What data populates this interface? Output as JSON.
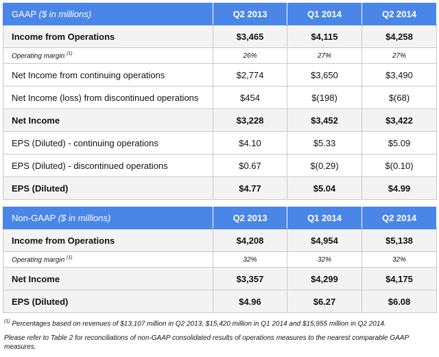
{
  "gaap": {
    "header": {
      "label": "GAAP",
      "unit": "($ in millions)",
      "periods": [
        "Q2 2013",
        "Q1 2014",
        "Q2 2014"
      ]
    },
    "rows": [
      {
        "label": "Income from Operations",
        "values": [
          "$3,465",
          "$4,115",
          "$4,258"
        ]
      },
      {
        "label": "Operating margin",
        "footnote": "(1)",
        "values": [
          "26%",
          "27%",
          "27%"
        ]
      },
      {
        "label": "Net Income from continuing operations",
        "values": [
          "$2,774",
          "$3,650",
          "$3,490"
        ]
      },
      {
        "label": "Net Income (loss) from discontinued operations",
        "values": [
          "$454",
          "$(198)",
          "$(68)"
        ]
      },
      {
        "label": "Net Income",
        "values": [
          "$3,228",
          "$3,452",
          "$3,422"
        ]
      },
      {
        "label": "EPS (Diluted) - continuing operations",
        "values": [
          "$4.10",
          "$5.33",
          "$5.09"
        ]
      },
      {
        "label": "EPS (Diluted) - discontinued operations",
        "values": [
          "$0.67",
          "$(0.29)",
          "$(0.10)"
        ]
      },
      {
        "label": "EPS (Diluted)",
        "values": [
          "$4.77",
          "$5.04",
          "$4.99"
        ]
      }
    ]
  },
  "non_gaap": {
    "header": {
      "label": "Non-GAAP",
      "unit": "($ in millions)",
      "periods": [
        "Q2 2013",
        "Q1 2014",
        "Q2 2014"
      ]
    },
    "rows": [
      {
        "label": "Income from Operations",
        "values": [
          "$4,208",
          "$4,954",
          "$5,138"
        ]
      },
      {
        "label": "Operating margin",
        "footnote": "(1)",
        "values": [
          "32%",
          "32%",
          "32%"
        ]
      },
      {
        "label": "Net Income",
        "values": [
          "$3,357",
          "$4,299",
          "$4,175"
        ]
      },
      {
        "label": "EPS (Diluted)",
        "values": [
          "$4.96",
          "$6.27",
          "$6.08"
        ]
      }
    ]
  },
  "notes": {
    "footnote_marker": "(1)",
    "footnote_text": "Percentages based on revenues of $13,107 million in Q2 2013, $15,420 million in Q1 2014 and $15,955 million in Q2 2014.",
    "reference_text": "Please refer to Table 2 for reconciliations of non-GAAP consolidated results of operations measures to the nearest comparable GAAP measures."
  },
  "colors": {
    "header_blue": "#4a86e8",
    "row_shade": "#f3f3f3",
    "border": "#c9c9c9"
  }
}
